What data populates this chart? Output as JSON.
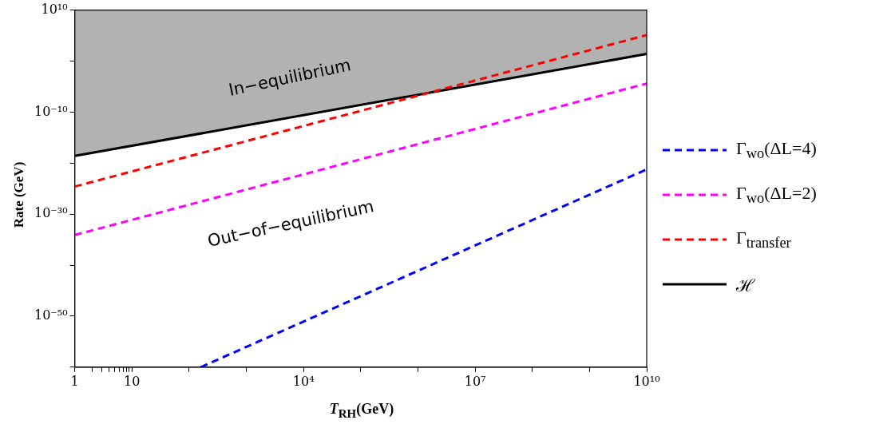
{
  "chart_data": {
    "type": "line",
    "xlabel": "T$_{RH}$(GeV)",
    "ylabel": "Rate (GeV)",
    "log": "xy",
    "grid": false,
    "legend": "right",
    "marker": "none",
    "xlim": [
      1,
      10000000000
    ],
    "ylim": [
      1e-60,
      10000000000
    ],
    "xticks": [
      {
        "value": 1,
        "label": "1"
      },
      {
        "value": 2,
        "label": null
      },
      {
        "value": 3,
        "label": null
      },
      {
        "value": 4,
        "label": null
      },
      {
        "value": 5,
        "label": null
      },
      {
        "value": 6,
        "label": null
      },
      {
        "value": 7,
        "label": null
      },
      {
        "value": 8,
        "label": null
      },
      {
        "value": 9,
        "label": null
      },
      {
        "value": 10,
        "label": "10"
      },
      {
        "value": 100,
        "label": null
      },
      {
        "value": 1000,
        "label": null
      },
      {
        "value": 10000,
        "label": "10⁴"
      },
      {
        "value": 100000,
        "label": null
      },
      {
        "value": 1000000,
        "label": null
      },
      {
        "value": 10000000,
        "label": "10⁷"
      },
      {
        "value": 100000000,
        "label": null
      },
      {
        "value": 1000000000,
        "label": null
      },
      {
        "value": 10000000000,
        "label": "10¹⁰"
      }
    ],
    "yticks": [
      {
        "value": 10000000000,
        "label": "10¹⁰"
      },
      {
        "value": 1,
        "label": null
      },
      {
        "value": 1e-10,
        "label": "10⁻¹⁰"
      },
      {
        "value": 1e-20,
        "label": null
      },
      {
        "value": 1e-30,
        "label": "10⁻³⁰"
      },
      {
        "value": 1e-40,
        "label": null
      },
      {
        "value": 1e-50,
        "label": "10⁻⁵⁰"
      },
      {
        "value": 1e-60,
        "label": null
      }
    ],
    "annotations": [
      "In−equilibrium",
      "Out−of−equilibrium"
    ],
    "series": [
      {
        "name": "Γ$_{wo}$(ΔL=4)",
        "color": "#0000ff",
        "line_style": "dashed",
        "x": [
          160,
          10000000000
        ],
        "values": [
          1e-60,
          6e-22
        ]
      },
      {
        "name": "Γ$_{wo}$(ΔL=2)",
        "color": "#ff00ff",
        "line_style": "dashed",
        "x": [
          1,
          10000000000
        ],
        "values": [
          8e-35,
          4e-05
        ]
      },
      {
        "name": "Γ$_{transfer}$",
        "color": "#ff0000",
        "line_style": "dashed",
        "x": [
          1,
          10000000000
        ],
        "values": [
          2.5e-25,
          125000
        ]
      },
      {
        "name": "ℋ",
        "color": "#000000",
        "line_style": "solid",
        "x": [
          1,
          10000000000
        ],
        "values": [
          2.5e-19,
          25
        ],
        "lower": [
          2.5e-19,
          25
        ],
        "upper": [
          10000000000,
          10000000000
        ]
      }
    ]
  }
}
